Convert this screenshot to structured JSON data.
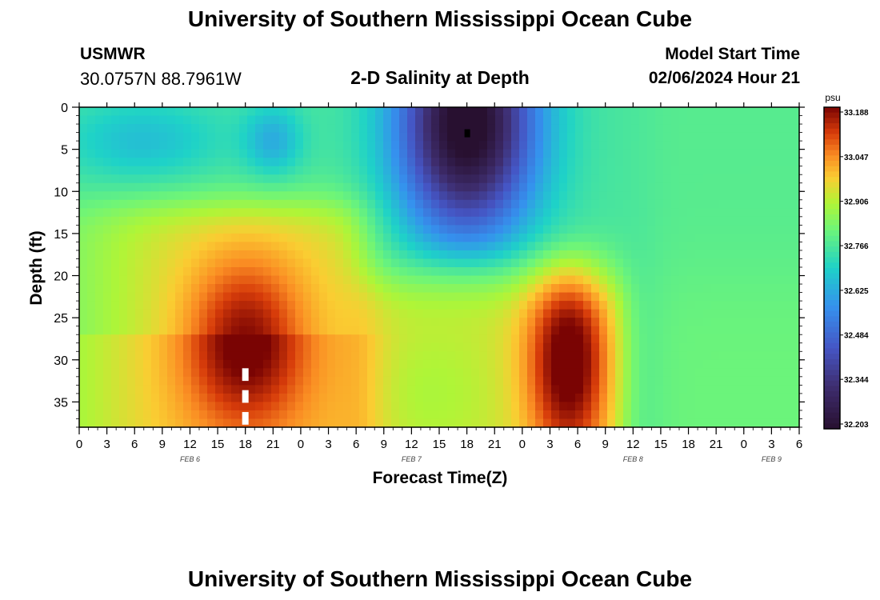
{
  "header": {
    "title": "University of Southern Mississippi Ocean Cube",
    "station": "USMWR",
    "coords": "30.0757N  88.7961W",
    "subtitle": "2-D Salinity at Depth",
    "start_label": "Model Start Time",
    "start_value": "02/06/2024 Hour 21"
  },
  "footer": {
    "title": "University of Southern Mississippi Ocean Cube"
  },
  "chart_data": {
    "type": "heatmap",
    "title": "2-D Salinity at Depth",
    "xlabel": "Forecast Time(Z)",
    "ylabel": "Depth (ft)",
    "x_unit": "hours since FEB 6 00Z",
    "xlim": [
      0,
      78
    ],
    "ylim": [
      0,
      38
    ],
    "x_tick_values": [
      0,
      3,
      6,
      9,
      12,
      15,
      18,
      21,
      24,
      27,
      30,
      33,
      36,
      39,
      42,
      45,
      48,
      51,
      54,
      57,
      60,
      63,
      66,
      69,
      72,
      75,
      78
    ],
    "x_tick_labels": [
      "0",
      "3",
      "6",
      "9",
      "12",
      "15",
      "18",
      "21",
      "0",
      "3",
      "6",
      "9",
      "12",
      "15",
      "18",
      "21",
      "0",
      "3",
      "6",
      "9",
      "12",
      "15",
      "18",
      "21",
      "0",
      "3",
      "6"
    ],
    "y_tick_values": [
      0,
      5,
      10,
      15,
      20,
      25,
      30,
      35
    ],
    "y_tick_labels": [
      "0",
      "5",
      "10",
      "15",
      "20",
      "25",
      "30",
      "35"
    ],
    "date_labels": [
      {
        "text": "FEB 6",
        "x": 12
      },
      {
        "text": "FEB 7",
        "x": 36
      },
      {
        "text": "FEB 8",
        "x": 60
      },
      {
        "text": "FEB 9",
        "x": 75
      }
    ],
    "colorbar": {
      "unit": "psu",
      "min": 32.203,
      "max": 33.188,
      "tick_labels": [
        "33.188",
        "33.047",
        "32.906",
        "32.766",
        "32.625",
        "32.484",
        "32.344",
        "32.203"
      ]
    },
    "markers": [
      {
        "type": "black-square",
        "x": 42,
        "depth": 3
      },
      {
        "type": "white-dashes",
        "x": 18,
        "depth_range": [
          31,
          38
        ]
      }
    ],
    "features": {
      "surface_background": 32.76,
      "fresh_lens": {
        "center_hour": 42,
        "center_depth": 3,
        "min": 32.21,
        "bottom_depth": 20
      },
      "minor_fresh_spot": {
        "center_hour": 21,
        "center_depth": 3,
        "value": 32.62
      },
      "salty_core_1": {
        "center_hour": 18,
        "center_depth": 28,
        "max": 33.188
      },
      "salty_core_2": {
        "center_hour": 53,
        "center_depth": 30,
        "max": 33.1
      }
    }
  }
}
